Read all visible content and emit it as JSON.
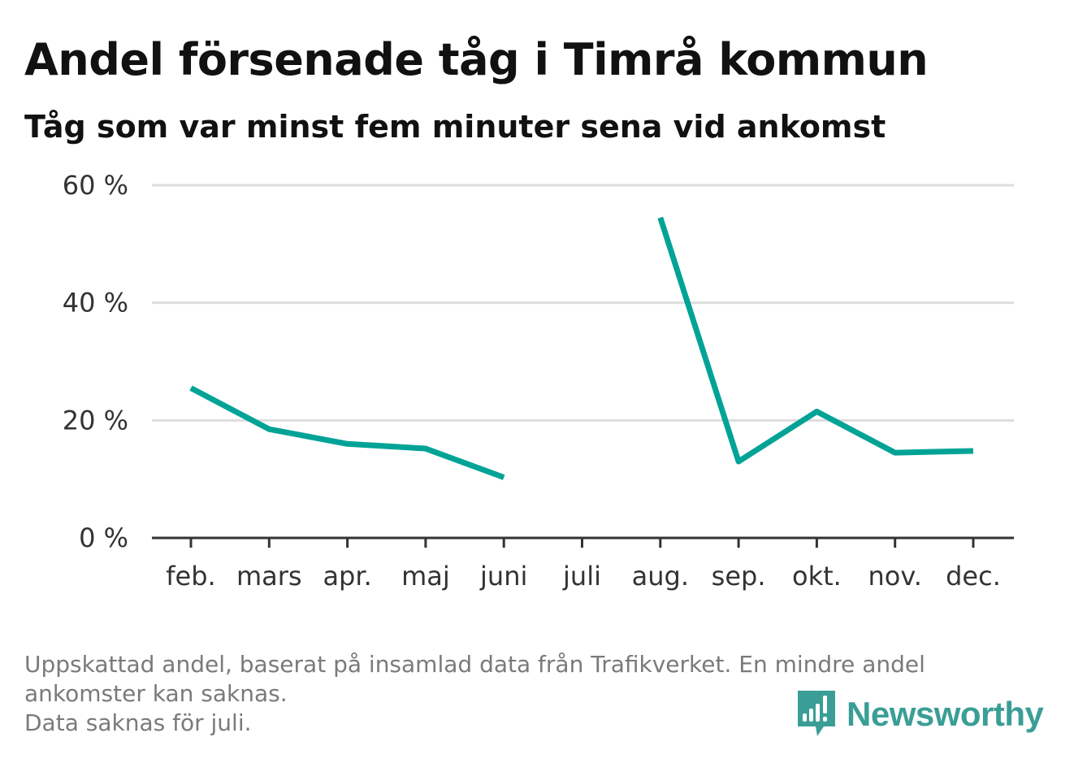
{
  "header": {
    "title": "Andel försenade tåg i Timrå kommun",
    "subtitle": "Tåg som var minst fem minuter sena vid ankomst"
  },
  "footer": {
    "note_lines": [
      "Uppskattad andel, baserat på insamlad data från Trafikverket. En mindre andel",
      "ankomster kan saknas.",
      "Data saknas för juli."
    ],
    "brand": "Newsworthy",
    "brand_icon": "newsworthy-logo-icon"
  },
  "colors": {
    "line": "#00a396",
    "grid": "#dddddd",
    "axis": "#333333",
    "brand": "#3a9e96"
  },
  "chart_data": {
    "type": "line",
    "categories": [
      "feb.",
      "mars",
      "apr.",
      "maj",
      "juni",
      "juli",
      "aug.",
      "sep.",
      "okt.",
      "nov.",
      "dec."
    ],
    "series": [
      {
        "values": [
          25.5,
          18.5,
          16,
          15.2,
          10.3,
          null,
          54.5,
          13,
          21.5,
          14.5,
          14.8
        ]
      }
    ],
    "y_ticks": [
      "0 %",
      "20 %",
      "40 %",
      "60 %"
    ],
    "y_tick_values": [
      0,
      20,
      40,
      60
    ],
    "ylim": [
      0,
      60
    ],
    "grid": true
  }
}
